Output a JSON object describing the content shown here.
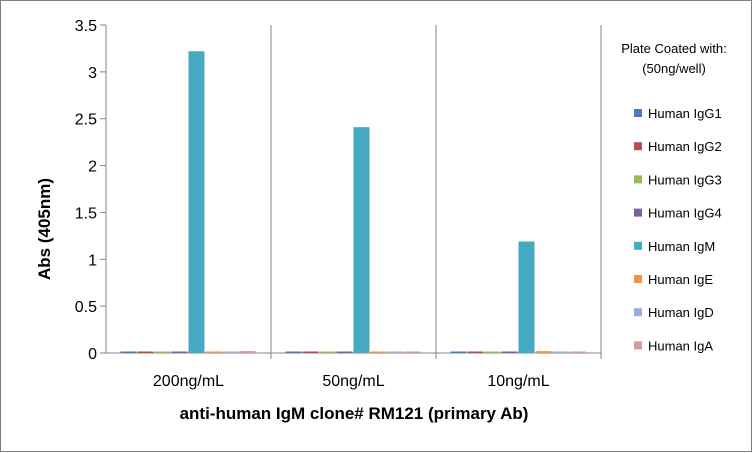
{
  "chart_data": {
    "type": "bar",
    "title": "",
    "xlabel": "anti-human IgM clone# RM121 (primary Ab)",
    "ylabel": "Abs (405nm)",
    "ylim": [
      0,
      3.5
    ],
    "yticks": [
      "0",
      "0.5",
      "1",
      "1.5",
      "2",
      "2.5",
      "3",
      "3.5"
    ],
    "categories": [
      "200ng/mL",
      "50ng/mL",
      "10ng/mL"
    ],
    "legend": {
      "title_line1": "Plate Coated with:",
      "title_line2": "(50ng/well)",
      "position": "right"
    },
    "grid": "vertical category separators",
    "series": [
      {
        "name": "Human IgG1",
        "color": "#4a7ebb",
        "values": [
          0.005,
          0.004,
          0.004
        ]
      },
      {
        "name": "Human IgG2",
        "color": "#be4b48",
        "values": [
          0.004,
          0.003,
          0.005
        ]
      },
      {
        "name": "Human IgG3",
        "color": "#98b954",
        "values": [
          0.012,
          0.004,
          0.006
        ]
      },
      {
        "name": "Human IgG4",
        "color": "#7d60a0",
        "values": [
          0.005,
          0.005,
          0.012
        ]
      },
      {
        "name": "Human IgM",
        "color": "#46aac5",
        "values": [
          3.22,
          2.41,
          1.19
        ]
      },
      {
        "name": "Human IgE",
        "color": "#f69240",
        "values": [
          0.006,
          0.004,
          0.02
        ]
      },
      {
        "name": "Human IgD",
        "color": "#9dacd4",
        "values": [
          0.006,
          0.004,
          0.005
        ]
      },
      {
        "name": "Human IgA",
        "color": "#d99795",
        "values": [
          0.02,
          0.01,
          0.01
        ]
      }
    ]
  }
}
